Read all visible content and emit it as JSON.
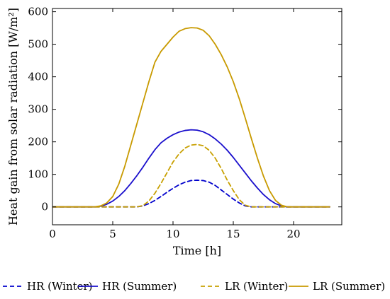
{
  "chart_data": {
    "type": "line",
    "xlabel": "Time [h]",
    "ylabel": "Heat gain from solar radiation [W/m²]",
    "xlim": [
      0,
      24
    ],
    "ylim": [
      -55,
      610
    ],
    "x_ticks": [
      0,
      5,
      10,
      15,
      20
    ],
    "y_ticks": [
      0,
      100,
      200,
      300,
      400,
      500,
      600
    ],
    "grid": false,
    "legend": "bottom",
    "series": [
      {
        "name": "HR (Winter)",
        "color": "#0000cc",
        "dash": "dashed",
        "x": [
          0,
          7,
          7.5,
          8,
          8.5,
          9,
          9.5,
          10,
          10.5,
          11,
          11.5,
          12,
          12.5,
          13,
          13.5,
          14,
          14.5,
          15,
          15.5,
          16,
          16.5,
          23
        ],
        "y": [
          0,
          0,
          3,
          10,
          20,
          32,
          45,
          57,
          68,
          76,
          81,
          82,
          81,
          76,
          66,
          52,
          38,
          24,
          12,
          3,
          0,
          0
        ]
      },
      {
        "name": "HR (Summer)",
        "color": "#1a0fcc",
        "dash": "solid",
        "x": [
          0,
          3.5,
          4,
          4.5,
          5,
          5.5,
          6,
          6.5,
          7,
          7.5,
          8,
          8.5,
          9,
          9.5,
          10,
          10.5,
          11,
          11.5,
          12,
          12.5,
          13,
          13.5,
          14,
          14.5,
          15,
          15.5,
          16,
          16.5,
          17,
          17.5,
          18,
          18.5,
          19,
          19.5,
          20,
          23
        ],
        "y": [
          0,
          0,
          2,
          8,
          18,
          32,
          50,
          72,
          96,
          122,
          150,
          176,
          197,
          211,
          222,
          230,
          235,
          237,
          236,
          231,
          222,
          209,
          193,
          174,
          152,
          128,
          104,
          80,
          58,
          38,
          22,
          10,
          3,
          0,
          0,
          0
        ]
      },
      {
        "name": "LR (Winter)",
        "color": "#c8a000",
        "dash": "dashed",
        "x": [
          0,
          7,
          7.5,
          8,
          8.5,
          9,
          9.5,
          10,
          10.5,
          11,
          11.5,
          12,
          12.5,
          13,
          13.5,
          14,
          14.5,
          15,
          15.5,
          16,
          16.5,
          23
        ],
        "y": [
          0,
          0,
          4,
          18,
          42,
          72,
          105,
          138,
          163,
          181,
          190,
          192,
          188,
          174,
          150,
          118,
          82,
          50,
          22,
          5,
          0,
          0
        ]
      },
      {
        "name": "LR (Summer)",
        "color": "#c89a00",
        "dash": "solid",
        "x": [
          0,
          3.5,
          4,
          4.5,
          5,
          5.5,
          6,
          6.5,
          7,
          7.5,
          8,
          8.5,
          9,
          9.5,
          10,
          10.5,
          11,
          11.5,
          12,
          12.5,
          13,
          13.5,
          14,
          14.5,
          15,
          15.5,
          16,
          16.5,
          17,
          17.5,
          18,
          18.5,
          19,
          19.5,
          20,
          23
        ],
        "y": [
          0,
          0,
          3,
          12,
          32,
          70,
          125,
          190,
          255,
          320,
          385,
          445,
          478,
          500,
          522,
          540,
          548,
          551,
          550,
          543,
          526,
          500,
          468,
          430,
          385,
          332,
          272,
          210,
          150,
          95,
          50,
          20,
          5,
          0,
          0,
          0
        ]
      }
    ]
  }
}
